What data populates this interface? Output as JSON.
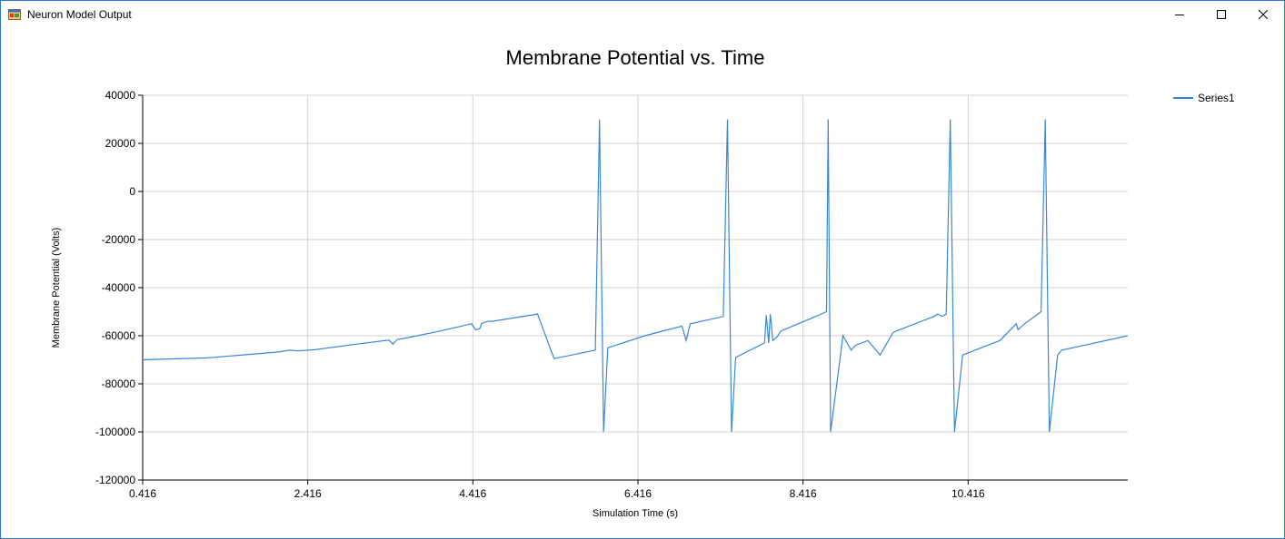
{
  "window": {
    "title": "Neuron Model Output",
    "icon": "app-form-icon",
    "controls": [
      "minimize-icon",
      "maximize-icon",
      "close-icon"
    ]
  },
  "colors": {
    "series": "#3a87d8",
    "grid": "#d3d3d3",
    "axis": "#000000",
    "border": "#2b78d6"
  },
  "chart_data": {
    "type": "line",
    "title": "Membrane Potential vs. Time",
    "xlabel": "Simulation Time (s)",
    "ylabel": "Membrane Potential (Volts)",
    "xlim": [
      0.416,
      12.35
    ],
    "ylim": [
      -120000,
      40000
    ],
    "xticks": [
      0.416,
      2.416,
      4.416,
      6.416,
      8.416,
      10.416
    ],
    "xtick_labels": [
      "0.416",
      "2.416",
      "4.416",
      "6.416",
      "8.416",
      "10.416"
    ],
    "yticks": [
      40000,
      20000,
      0,
      -20000,
      -40000,
      -60000,
      -80000,
      -100000,
      -120000
    ],
    "ytick_labels": [
      "40000",
      "20000",
      "0",
      "-20000",
      "-40000",
      "-60000",
      "-80000",
      "-100000",
      "-120000"
    ],
    "grid": true,
    "legend_position": "top-right",
    "series": [
      {
        "name": "Series1",
        "x": [
          0.416,
          1.2,
          2.05,
          2.2,
          2.3,
          2.5,
          3.0,
          3.4,
          3.45,
          3.5,
          3.6,
          4.0,
          4.4,
          4.45,
          4.5,
          4.52,
          4.55,
          4.6,
          4.65,
          5.2,
          5.4,
          5.9,
          5.95,
          6.0,
          6.05,
          6.5,
          6.95,
          7.0,
          7.05,
          7.45,
          7.5,
          7.55,
          7.6,
          7.95,
          7.97,
          8.0,
          8.02,
          8.05,
          8.1,
          8.15,
          8.5,
          8.7,
          8.72,
          8.75,
          8.9,
          9.0,
          9.05,
          9.2,
          9.35,
          9.5,
          9.52,
          9.55,
          10.0,
          10.05,
          10.1,
          10.15,
          10.2,
          10.25,
          10.35,
          10.8,
          11.0,
          11.02,
          11.1,
          11.3,
          11.35,
          11.4,
          11.5,
          11.55,
          12.35
        ],
        "y": [
          -70000,
          -69200,
          -66800,
          -66000,
          -66300,
          -65800,
          -63500,
          -61800,
          -63500,
          -61500,
          -61000,
          -58200,
          -55000,
          -57500,
          -57000,
          -55000,
          -54500,
          -54000,
          -54000,
          -51000,
          -69500,
          -66000,
          30000,
          -100000,
          -65000,
          -60000,
          -56000,
          -62000,
          -55000,
          -52000,
          30000,
          -100000,
          -69000,
          -63000,
          -51500,
          -63000,
          -51000,
          -62000,
          -60500,
          -58000,
          -53000,
          -50000,
          30000,
          -100000,
          -60000,
          -66000,
          -64000,
          -62000,
          -68000,
          -59000,
          -58500,
          -58000,
          -52000,
          -51000,
          -52000,
          -51000,
          30000,
          -100000,
          -68000,
          -62000,
          -55000,
          -57500,
          -55000,
          -50000,
          30000,
          -100000,
          -68000,
          -66000,
          -60000
        ]
      }
    ]
  }
}
